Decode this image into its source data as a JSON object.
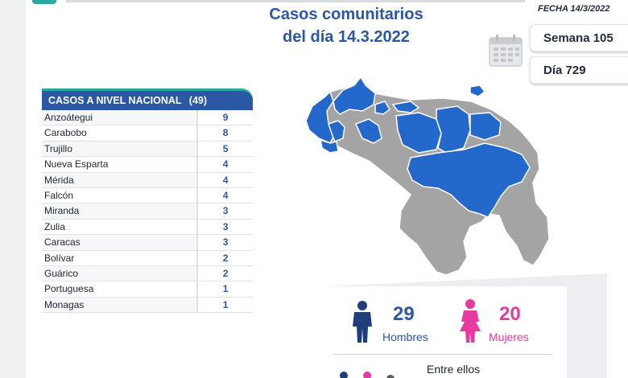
{
  "header": {
    "title_line1": "Casos comunitarios",
    "title_line2": "del día 14.3.2022",
    "fecha": "FECHA 14/3/2022"
  },
  "badges": {
    "semana": "Semana 105",
    "dia": "Día 729",
    "icon": "calendar-icon"
  },
  "table": {
    "header_label": "CASOS A NIVEL NACIONAL",
    "header_total": "(49)",
    "rows": [
      {
        "name": "Anzoátegui",
        "value": "9"
      },
      {
        "name": "Carabobo",
        "value": "8"
      },
      {
        "name": "Trujillo",
        "value": "5"
      },
      {
        "name": "Nueva Esparta",
        "value": "4"
      },
      {
        "name": "Mérida",
        "value": "4"
      },
      {
        "name": "Falcón",
        "value": "4"
      },
      {
        "name": "Miranda",
        "value": "3"
      },
      {
        "name": "Zulia",
        "value": "3"
      },
      {
        "name": "Caracas",
        "value": "3"
      },
      {
        "name": "Bolívar",
        "value": "2"
      },
      {
        "name": "Guárico",
        "value": "2"
      },
      {
        "name": "Portuguesa",
        "value": "1"
      },
      {
        "name": "Monagas",
        "value": "1"
      }
    ]
  },
  "map": {
    "highlight_color": "#2468cc",
    "base_color": "#a4a4a4"
  },
  "stats": {
    "men_count": "29",
    "men_label": "Hombres",
    "women_count": "20",
    "women_label": "Mujeres",
    "entre_ellos": "Entre ellos",
    "men_color": "#1f3f7a",
    "men_text_color": "#2a57a6",
    "women_color": "#e63aa0"
  },
  "colors": {
    "accent": "#2b58a4",
    "teal": "#27a8a0"
  }
}
